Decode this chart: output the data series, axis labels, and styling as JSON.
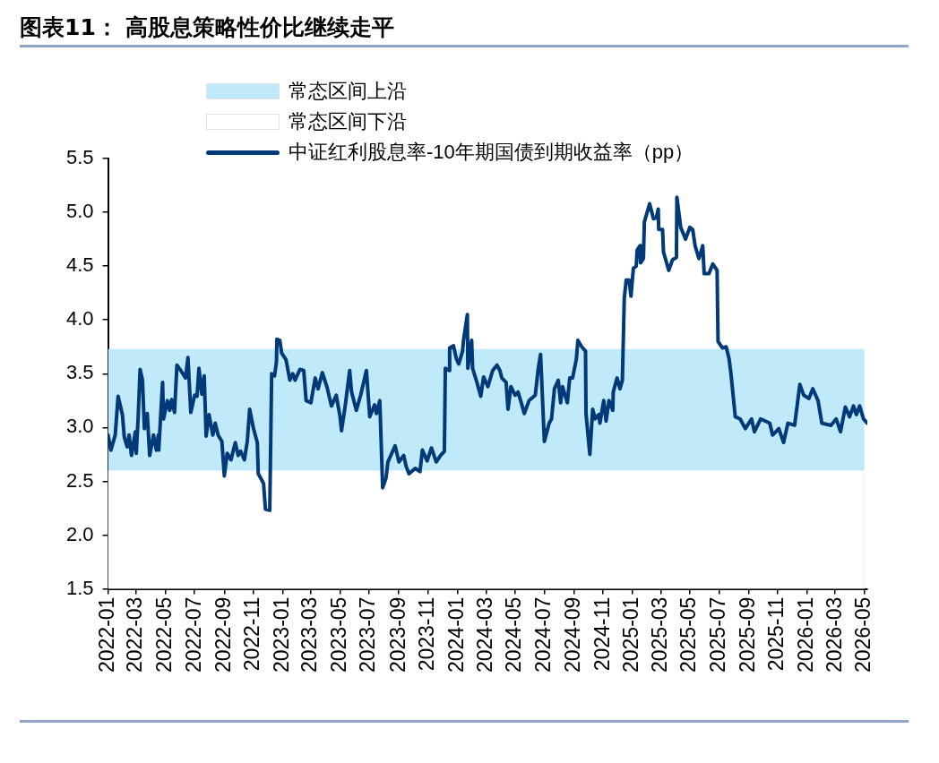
{
  "chart_data": {
    "type": "line",
    "title": "图表11：  高股息策略性价比继续走平",
    "ylim": [
      1.5,
      5.5
    ],
    "yticks": [
      1.5,
      {
        "value": 2.0,
        "label": "2.0"
      },
      2.5,
      {
        "value": 3.0,
        "label": "3.0"
      },
      3.5,
      {
        "value": 4.0,
        "label": "4.0"
      },
      4.5,
      {
        "value": 5.0,
        "label": "5.0"
      },
      5.5
    ],
    "xlim": [
      "2022-01-01",
      "2026-05-07"
    ],
    "xticks": [
      "2022-01",
      "2022-03",
      "2022-05",
      "2022-07",
      "2022-09",
      "2022-11",
      "2023-01",
      "2023-03",
      "2023-05",
      "2023-07",
      "2023-09",
      "2023-11",
      "2024-01",
      "2024-03",
      "2024-05",
      "2024-07",
      "2024-09",
      "2024-11",
      "2025-01",
      "2025-03",
      "2025-05",
      "2025-07",
      "2025-09",
      "2025-11",
      "2026-01",
      "2026-03",
      "2026-05"
    ],
    "legend": "top",
    "marker": "none",
    "line_style": "solid",
    "series": [
      {
        "name": "常态区间上沿",
        "type": "area",
        "color": "#c0e9f9",
        "x": [
          "2022-01-01",
          "2026-05-01"
        ],
        "values": [
          3.73,
          3.73
        ]
      },
      {
        "name": "常态区间下沿",
        "type": "area",
        "color": "#ffffff",
        "x": [
          "2022-01-01",
          "2026-05-01"
        ],
        "values": [
          2.6,
          2.6
        ]
      },
      {
        "name": "中证红利股息率-10年期国债到期收益率（pp）",
        "type": "line",
        "color": "#003a78",
        "x": [
          "2022-01-01",
          "2022-01-07",
          "2022-01-16",
          "2022-01-22",
          "2022-01-31",
          "2022-02-04",
          "2022-02-10",
          "2022-02-14",
          "2022-02-19",
          "2022-02-27",
          "2022-03-01",
          "2022-03-05",
          "2022-03-09",
          "2022-03-14",
          "2022-03-18",
          "2022-03-24",
          "2022-03-29",
          "2022-04-06",
          "2022-04-12",
          "2022-04-16",
          "2022-04-17",
          "2022-04-25",
          "2022-04-27",
          "2022-05-05",
          "2022-05-10",
          "2022-05-14",
          "2022-05-20",
          "2022-05-25",
          "2022-06-02",
          "2022-06-12",
          "2022-06-17",
          "2022-06-23",
          "2022-07-01",
          "2022-07-06",
          "2022-07-10",
          "2022-07-16",
          "2022-07-21",
          "2022-07-25",
          "2022-07-31",
          "2022-08-08",
          "2022-08-13",
          "2022-08-19",
          "2022-08-27",
          "2022-09-01",
          "2022-09-07",
          "2022-09-15",
          "2022-09-24",
          "2022-09-30",
          "2022-10-05",
          "2022-10-13",
          "2022-10-19",
          "2022-10-24",
          "2022-11-01",
          "2022-11-09",
          "2022-11-11",
          "2022-11-16",
          "2022-11-22",
          "2022-11-26",
          "2022-12-05",
          "2022-12-09",
          "2022-12-15",
          "2022-12-19",
          "2022-12-20",
          "2022-12-26",
          "2022-12-30",
          "2023-01-08",
          "2023-01-16",
          "2023-01-22",
          "2023-01-27",
          "2023-02-06",
          "2023-02-14",
          "2023-02-19",
          "2023-03-01",
          "2023-03-10",
          "2023-03-16",
          "2023-03-25",
          "2023-04-04",
          "2023-04-13",
          "2023-04-23",
          "2023-05-01",
          "2023-05-04",
          "2023-05-12",
          "2023-05-21",
          "2023-05-25",
          "2023-06-04",
          "2023-06-13",
          "2023-06-25",
          "2023-07-02",
          "2023-07-12",
          "2023-07-16",
          "2023-07-23",
          "2023-07-29",
          "2023-08-05",
          "2023-08-09",
          "2023-08-19",
          "2023-08-24",
          "2023-09-01",
          "2023-09-11",
          "2023-09-16",
          "2023-09-22",
          "2023-10-05",
          "2023-10-15",
          "2023-10-20",
          "2023-10-30",
          "2023-11-08",
          "2023-11-18",
          "2023-11-27",
          "2023-12-05",
          "2023-12-07",
          "2023-12-15",
          "2023-12-16",
          "2023-12-24",
          "2023-12-30",
          "2024-01-04",
          "2024-01-12",
          "2024-01-14",
          "2024-01-22",
          "2024-01-23",
          "2024-01-31",
          "2024-02-02",
          "2024-02-11",
          "2024-02-19",
          "2024-02-25",
          "2024-03-05",
          "2024-03-15",
          "2024-03-24",
          "2024-03-30",
          "2024-04-03",
          "2024-04-12",
          "2024-04-16",
          "2024-04-22",
          "2024-05-01",
          "2024-05-07",
          "2024-05-15",
          "2024-05-20",
          "2024-05-30",
          "2024-06-12",
          "2024-06-18",
          "2024-06-23",
          "2024-07-01",
          "2024-07-11",
          "2024-07-16",
          "2024-07-22",
          "2024-07-30",
          "2024-08-04",
          "2024-08-08",
          "2024-08-18",
          "2024-08-23",
          "2024-08-29",
          "2024-09-06",
          "2024-09-09",
          "2024-09-17",
          "2024-09-25",
          "2024-09-26",
          "2024-10-04",
          "2024-10-10",
          "2024-10-15",
          "2024-10-23",
          "2024-10-25",
          "2024-11-02",
          "2024-11-07",
          "2024-11-13",
          "2024-11-21",
          "2024-11-22",
          "2024-11-30",
          "2024-12-06",
          "2024-12-11",
          "2024-12-15",
          "2024-12-19",
          "2024-12-25",
          "2024-12-29",
          "2025-01-03",
          "2025-01-09",
          "2025-01-11",
          "2025-01-17",
          "2025-01-18",
          "2025-01-24",
          "2025-01-26",
          "2025-02-06",
          "2025-02-14",
          "2025-02-20",
          "2025-02-24",
          "2025-02-25",
          "2025-03-05",
          "2025-03-07",
          "2025-03-18",
          "2025-03-26",
          "2025-04-03",
          "2025-04-04",
          "2025-04-12",
          "2025-04-22",
          "2025-05-01",
          "2025-05-07",
          "2025-05-12",
          "2025-05-20",
          "2025-05-28",
          "2025-05-31",
          "2025-06-10",
          "2025-06-18",
          "2025-06-27",
          "2025-06-29",
          "2025-07-08",
          "2025-07-16",
          "2025-07-22",
          "2025-07-26",
          "2025-08-04",
          "2025-08-14",
          "2025-08-25",
          "2025-09-07",
          "2025-09-13",
          "2025-09-26",
          "2025-10-15",
          "2025-10-21",
          "2025-11-03",
          "2025-11-13",
          "2025-11-22",
          "2025-12-06",
          "2025-12-17",
          "2025-12-25",
          "2026-01-05",
          "2026-01-13",
          "2026-01-24",
          "2026-02-01",
          "2026-02-20",
          "2026-03-03",
          "2026-03-12",
          "2026-03-22",
          "2026-03-31",
          "2026-04-08",
          "2026-04-14",
          "2026-04-21",
          "2026-04-29",
          "2026-05-07"
        ],
        "values": [
          2.93,
          2.79,
          2.93,
          3.29,
          3.12,
          2.91,
          2.82,
          2.93,
          2.74,
          2.96,
          2.76,
          3.1,
          3.54,
          3.44,
          2.99,
          3.13,
          2.74,
          2.93,
          2.79,
          2.93,
          2.79,
          3.42,
          3.08,
          3.25,
          3.16,
          3.26,
          3.14,
          3.58,
          3.53,
          3.46,
          3.65,
          3.14,
          3.3,
          3.29,
          3.55,
          3.31,
          3.48,
          2.92,
          3.12,
          2.93,
          3.04,
          2.93,
          2.87,
          2.55,
          2.76,
          2.7,
          2.86,
          2.74,
          2.78,
          2.7,
          2.87,
          3.17,
          2.99,
          2.86,
          2.57,
          2.53,
          2.48,
          2.24,
          2.23,
          3.5,
          3.48,
          3.61,
          3.82,
          3.81,
          3.69,
          3.63,
          3.44,
          3.5,
          3.44,
          3.54,
          3.53,
          3.25,
          3.23,
          3.46,
          3.36,
          3.51,
          3.37,
          3.2,
          3.3,
          3.1,
          2.97,
          3.21,
          3.53,
          3.33,
          3.16,
          3.3,
          3.53,
          3.1,
          3.21,
          3.13,
          3.25,
          2.44,
          2.53,
          2.68,
          2.78,
          2.83,
          2.68,
          2.74,
          2.64,
          2.57,
          2.62,
          2.59,
          2.79,
          2.69,
          2.81,
          2.68,
          2.74,
          2.78,
          3.55,
          3.53,
          3.74,
          3.76,
          3.64,
          3.59,
          3.71,
          3.81,
          4.05,
          3.55,
          3.81,
          3.55,
          3.42,
          3.29,
          3.47,
          3.38,
          3.53,
          3.58,
          3.53,
          3.46,
          3.42,
          3.17,
          3.38,
          3.3,
          3.33,
          3.21,
          3.13,
          3.25,
          3.3,
          3.54,
          3.68,
          2.87,
          3.04,
          3.08,
          3.36,
          3.44,
          3.23,
          3.38,
          3.23,
          3.46,
          3.46,
          3.64,
          3.81,
          3.75,
          3.71,
          3.13,
          2.75,
          3.17,
          3.08,
          3.12,
          3.04,
          3.25,
          3.06,
          3.25,
          3.16,
          3.33,
          3.46,
          3.36,
          3.44,
          4.2,
          4.37,
          4.37,
          4.22,
          4.48,
          4.5,
          4.65,
          4.69,
          4.53,
          4.57,
          4.91,
          5.08,
          4.94,
          4.95,
          5.03,
          4.84,
          4.84,
          4.63,
          4.46,
          4.56,
          4.58,
          5.14,
          4.86,
          4.75,
          4.86,
          4.84,
          4.69,
          4.57,
          4.69,
          4.43,
          4.43,
          4.52,
          4.46,
          3.8,
          3.74,
          3.75,
          3.64,
          3.5,
          3.1,
          3.08,
          2.99,
          3.08,
          2.96,
          3.08,
          3.04,
          2.93,
          2.99,
          2.86,
          3.04,
          3.02,
          3.4,
          3.3,
          3.27,
          3.36,
          3.25,
          3.04,
          3.02,
          3.08,
          2.96,
          3.19,
          3.1,
          3.2,
          3.12,
          3.2,
          3.08,
          3.04
        ]
      }
    ]
  }
}
